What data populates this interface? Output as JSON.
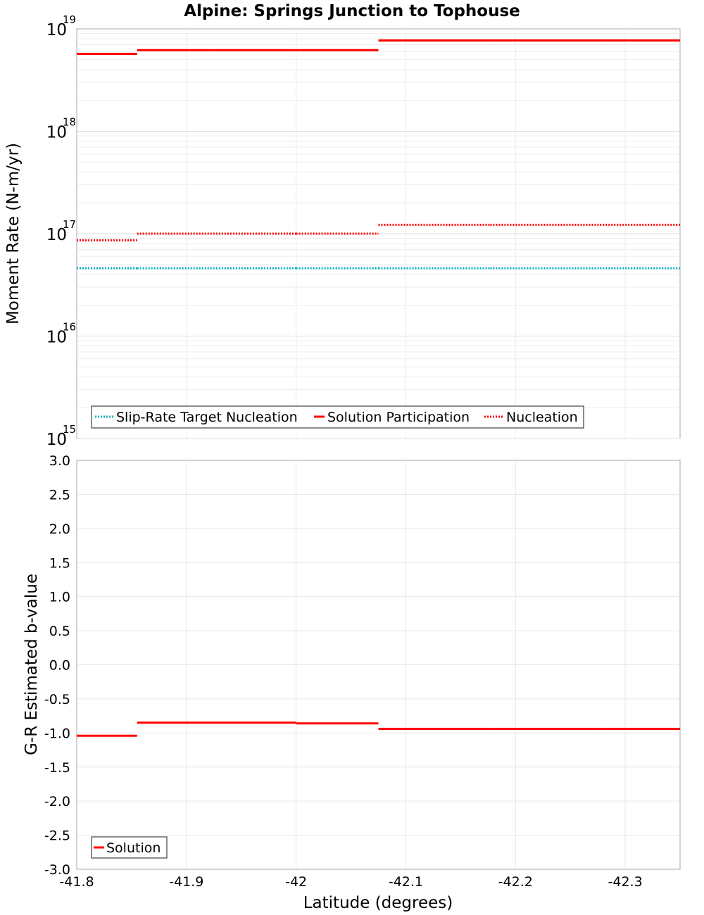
{
  "chart_data": [
    {
      "type": "line",
      "title": "Alpine: Springs Junction to Tophouse",
      "xlabel": "",
      "ylabel": "Moment Rate (N-m/yr)",
      "yscale": "log",
      "xlim": [
        -41.8,
        -42.35
      ],
      "ylim": [
        1000000000000000.0,
        1e+19
      ],
      "y_ticks": [
        {
          "base": "10",
          "exp": "15"
        },
        {
          "base": "10",
          "exp": "16"
        },
        {
          "base": "10",
          "exp": "17"
        },
        {
          "base": "10",
          "exp": "18"
        },
        {
          "base": "10",
          "exp": "19"
        }
      ],
      "legend_position": "bottom-left",
      "series": [
        {
          "name": "Slip-Rate Target Nucleation",
          "color": "#00b0c0",
          "style": "dotted",
          "segments": [
            {
              "x0": -41.8,
              "x1": -41.855,
              "y": 4.6e+16
            },
            {
              "x0": -41.855,
              "x1": -41.927,
              "y": 4.6e+16
            },
            {
              "x0": -41.927,
              "x1": -42.0,
              "y": 4.6e+16
            },
            {
              "x0": -42.0,
              "x1": -42.075,
              "y": 4.6e+16
            },
            {
              "x0": -42.075,
              "x1": -42.177,
              "y": 4.6e+16
            },
            {
              "x0": -42.177,
              "x1": -42.277,
              "y": 4.6e+16
            },
            {
              "x0": -42.277,
              "x1": -42.35,
              "y": 4.6e+16
            }
          ]
        },
        {
          "name": "Solution Participation",
          "color": "#ff0000",
          "style": "solid",
          "segments": [
            {
              "x0": -41.8,
              "x1": -41.855,
              "y": 5.7e+18
            },
            {
              "x0": -41.855,
              "x1": -41.927,
              "y": 6.2e+18
            },
            {
              "x0": -41.927,
              "x1": -42.0,
              "y": 6.2e+18
            },
            {
              "x0": -42.0,
              "x1": -42.075,
              "y": 6.2e+18
            },
            {
              "x0": -42.075,
              "x1": -42.177,
              "y": 7.7e+18
            },
            {
              "x0": -42.177,
              "x1": -42.277,
              "y": 7.7e+18
            },
            {
              "x0": -42.277,
              "x1": -42.35,
              "y": 7.7e+18
            }
          ]
        },
        {
          "name": "Nucleation",
          "color": "#ff0000",
          "style": "dotted",
          "segments": [
            {
              "x0": -41.8,
              "x1": -41.855,
              "y": 8.6e+16
            },
            {
              "x0": -41.855,
              "x1": -41.927,
              "y": 1e+17
            },
            {
              "x0": -41.927,
              "x1": -42.0,
              "y": 1e+17
            },
            {
              "x0": -42.0,
              "x1": -42.075,
              "y": 1e+17
            },
            {
              "x0": -42.075,
              "x1": -42.177,
              "y": 1.22e+17
            },
            {
              "x0": -42.177,
              "x1": -42.277,
              "y": 1.22e+17
            },
            {
              "x0": -42.277,
              "x1": -42.35,
              "y": 1.22e+17
            }
          ]
        }
      ]
    },
    {
      "type": "line",
      "title": "",
      "xlabel": "Latitude (degrees)",
      "ylabel": "G-R Estimated b-value",
      "yscale": "linear",
      "xlim": [
        -41.8,
        -42.35
      ],
      "ylim": [
        -3.0,
        3.0
      ],
      "x_ticks": [
        "-41.8",
        "-41.9",
        "-42",
        "-42.1",
        "-42.2",
        "-42.3"
      ],
      "x_tick_values": [
        -41.8,
        -41.9,
        -42.0,
        -42.1,
        -42.2,
        -42.3
      ],
      "y_ticks": [
        "3.0",
        "2.5",
        "2.0",
        "1.5",
        "1.0",
        "0.5",
        "0.0",
        "-0.5",
        "-1.0",
        "-1.5",
        "-2.0",
        "-2.5",
        "-3.0"
      ],
      "y_tick_values": [
        3.0,
        2.5,
        2.0,
        1.5,
        1.0,
        0.5,
        0.0,
        -0.5,
        -1.0,
        -1.5,
        -2.0,
        -2.5,
        -3.0
      ],
      "legend_position": "bottom-left",
      "series": [
        {
          "name": "Solution",
          "color": "#ff0000",
          "style": "solid",
          "segments": [
            {
              "x0": -41.8,
              "x1": -41.855,
              "y": -1.04
            },
            {
              "x0": -41.855,
              "x1": -41.927,
              "y": -0.85
            },
            {
              "x0": -41.927,
              "x1": -42.0,
              "y": -0.85
            },
            {
              "x0": -42.0,
              "x1": -42.075,
              "y": -0.86
            },
            {
              "x0": -42.075,
              "x1": -42.177,
              "y": -0.94
            },
            {
              "x0": -42.177,
              "x1": -42.277,
              "y": -0.94
            },
            {
              "x0": -42.277,
              "x1": -42.35,
              "y": -0.94
            }
          ]
        }
      ]
    }
  ]
}
